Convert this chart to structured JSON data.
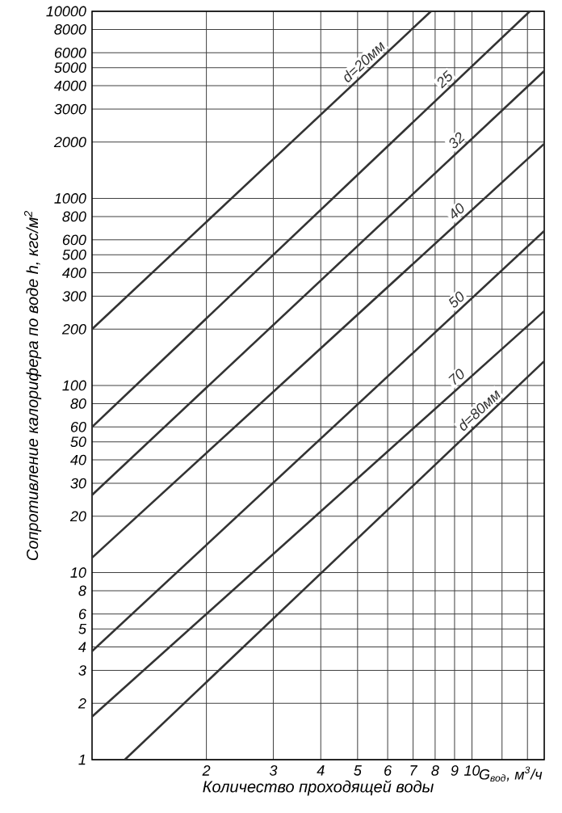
{
  "chart_data": {
    "type": "line",
    "xlabel": "Количество проходящей воды",
    "ylabel": "Сопротивление калорифера по воде  h, кгс/м$^{2}$",
    "annotations": [
      "G$_{вод}$, м$^{3}$/ч"
    ],
    "log": "xy",
    "grid": true,
    "marker": "none",
    "line_style": "solid",
    "xlim": [
      1,
      15.5
    ],
    "ylim": [
      1,
      10000
    ],
    "xticks": [
      2,
      3,
      4,
      5,
      6,
      7,
      8,
      9,
      10,
      {
        "value": 12,
        "label": null
      },
      {
        "value": 14,
        "label": null
      }
    ],
    "yticks": [
      1,
      2,
      3,
      4,
      5,
      6,
      8,
      10,
      20,
      30,
      40,
      50,
      60,
      80,
      100,
      200,
      300,
      400,
      500,
      600,
      800,
      1000,
      2000,
      3000,
      4000,
      5000,
      6000,
      8000,
      10000
    ],
    "series": [
      {
        "name": "d=20мм",
        "color": "#333333",
        "x": [
          1,
          7.8
        ],
        "values": [
          200,
          10000
        ]
      },
      {
        "name": "25",
        "color": "#333333",
        "x": [
          1,
          14.2
        ],
        "values": [
          60,
          10000
        ]
      },
      {
        "name": "32",
        "color": "#333333",
        "x": [
          1,
          15.5
        ],
        "values": [
          26,
          4800
        ]
      },
      {
        "name": "40",
        "color": "#333333",
        "x": [
          1,
          15.5
        ],
        "values": [
          12,
          1960
        ]
      },
      {
        "name": "50",
        "color": "#333333",
        "x": [
          1,
          15.5
        ],
        "values": [
          3.8,
          670
        ]
      },
      {
        "name": "70",
        "color": "#333333",
        "x": [
          1,
          15.5
        ],
        "values": [
          1.7,
          250
        ]
      },
      {
        "name": "d=80мм",
        "color": "#333333",
        "x": [
          1.22,
          15.5
        ],
        "values": [
          1,
          135
        ]
      }
    ]
  }
}
